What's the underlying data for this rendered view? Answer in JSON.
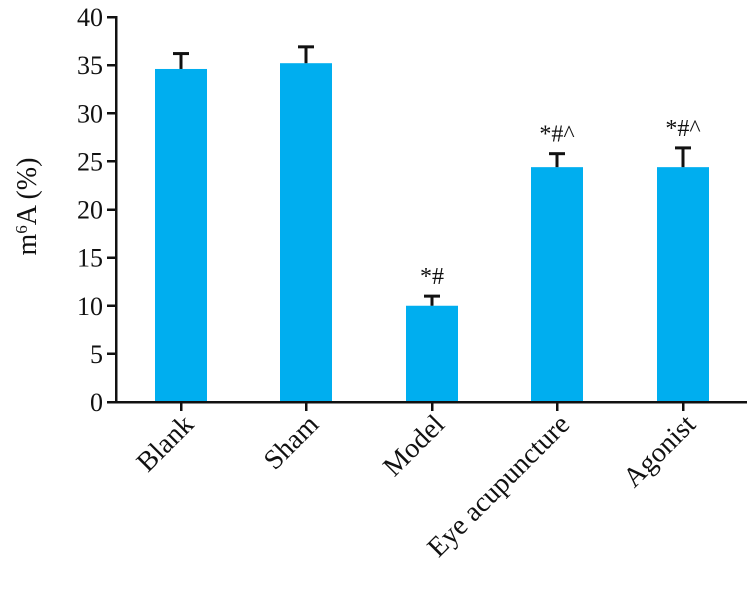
{
  "chart_data": {
    "type": "bar",
    "title": "",
    "xlabel": "",
    "ylabel": {
      "base": "m",
      "superscript": "6",
      "rest": "A (%)"
    },
    "ylim": [
      0,
      40
    ],
    "yticks": [
      "0",
      "5",
      "10",
      "15",
      "20",
      "25",
      "30",
      "35",
      "40"
    ],
    "categories": [
      "Blank",
      "Sham",
      "Model",
      "Eye acupuncture",
      "Agonist"
    ],
    "values": [
      34.6,
      35.2,
      10.0,
      24.4,
      24.4
    ],
    "errors": [
      1.6,
      1.7,
      1.0,
      1.4,
      2.0
    ],
    "annotations": [
      "",
      "",
      "*#",
      "*#^",
      "*#^"
    ],
    "bar_color": "#00AEEF",
    "grid": false
  }
}
